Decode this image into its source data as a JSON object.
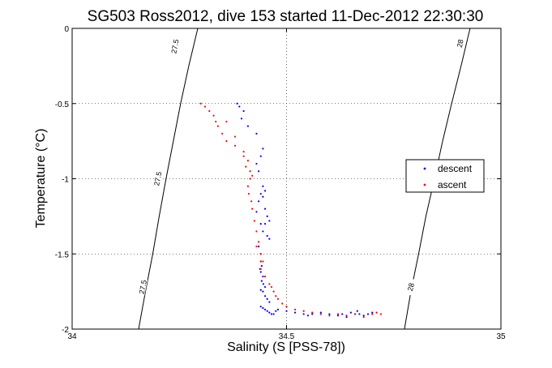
{
  "chart_data": {
    "type": "scatter",
    "title": "SG503 Ross2012, dive 153 started 11-Dec-2012 22:30:30",
    "xlabel": "Salinity (S [PSS-78])",
    "ylabel": "Temperature (°C)",
    "xlim": [
      34,
      35
    ],
    "ylim": [
      -2,
      0
    ],
    "x_ticks": [
      34,
      34.5,
      35
    ],
    "x_tick_labels": [
      "34",
      "34.5",
      "35"
    ],
    "y_ticks": [
      -2,
      -1.5,
      -1,
      -0.5,
      0
    ],
    "y_tick_labels": [
      "-2",
      "-1.5",
      "-1",
      "-0.5",
      "0"
    ],
    "grid": true,
    "legend_position": "right",
    "isopycnals": [
      {
        "label": "27.5",
        "points": [
          [
            34.155,
            -2
          ],
          [
            34.171,
            -1.75
          ],
          [
            34.188,
            -1.5
          ],
          [
            34.203,
            -1.25
          ],
          [
            34.219,
            -1.0
          ],
          [
            34.236,
            -0.75
          ],
          [
            34.253,
            -0.5
          ],
          [
            34.272,
            -0.25
          ],
          [
            34.293,
            0
          ]
        ],
        "label_positions": [
          [
            34.165,
            -1.72
          ],
          [
            34.2,
            -1.0
          ],
          [
            34.24,
            -0.12
          ]
        ]
      },
      {
        "label": "28",
        "points": [
          [
            34.775,
            -2
          ],
          [
            34.79,
            -1.75
          ],
          [
            34.808,
            -1.5
          ],
          [
            34.825,
            -1.25
          ],
          [
            34.845,
            -1.0
          ],
          [
            34.864,
            -0.75
          ],
          [
            34.885,
            -0.5
          ],
          [
            34.907,
            -0.25
          ],
          [
            34.928,
            0
          ]
        ],
        "label_positions": [
          [
            34.79,
            -1.72
          ],
          [
            34.905,
            -0.1
          ]
        ]
      }
    ],
    "series": [
      {
        "name": "descent",
        "color": "#0000ff",
        "x": [
          34.385,
          34.39,
          34.4,
          34.395,
          34.41,
          34.43,
          34.445,
          34.44,
          34.43,
          34.435,
          34.445,
          34.45,
          34.44,
          34.435,
          34.445,
          34.45,
          34.455,
          34.46,
          34.45,
          34.445,
          34.455,
          34.46,
          34.44,
          34.44,
          34.442,
          34.438,
          34.44,
          34.445,
          34.442,
          34.446,
          34.45,
          34.44,
          34.445,
          34.45,
          34.455,
          34.46,
          34.44,
          34.445,
          34.45,
          34.455,
          34.46,
          34.465,
          34.47,
          34.475,
          34.48,
          34.5,
          34.52,
          34.54,
          34.55,
          34.56,
          34.58,
          34.6,
          34.62,
          34.63,
          34.64,
          34.65,
          34.66,
          34.665,
          34.67,
          34.68,
          34.69,
          34.7,
          34.43,
          34.44,
          34.435
        ],
        "y": [
          -0.5,
          -0.52,
          -0.55,
          -0.6,
          -0.65,
          -0.7,
          -0.8,
          -0.85,
          -0.9,
          -0.95,
          -1.05,
          -1.08,
          -1.1,
          -1.15,
          -1.12,
          -1.2,
          -1.25,
          -1.28,
          -1.3,
          -1.35,
          -1.38,
          -1.4,
          -1.5,
          -1.55,
          -1.58,
          -1.6,
          -1.62,
          -1.65,
          -1.68,
          -1.7,
          -1.72,
          -1.74,
          -1.75,
          -1.78,
          -1.8,
          -1.82,
          -1.85,
          -1.86,
          -1.87,
          -1.88,
          -1.89,
          -1.9,
          -1.9,
          -1.88,
          -1.87,
          -1.88,
          -1.89,
          -1.9,
          -1.91,
          -1.9,
          -1.89,
          -1.9,
          -1.91,
          -1.9,
          -1.92,
          -1.89,
          -1.9,
          -1.88,
          -1.9,
          -1.91,
          -1.9,
          -1.89,
          -1.22,
          -1.3,
          -1.45
        ]
      },
      {
        "name": "ascent",
        "color": "#ff0000",
        "x": [
          34.3,
          34.31,
          34.32,
          34.33,
          34.335,
          34.34,
          34.35,
          34.36,
          34.38,
          34.4,
          34.41,
          34.405,
          34.415,
          34.42,
          34.415,
          34.41,
          34.412,
          34.418,
          34.42,
          34.425,
          34.43,
          34.435,
          34.44,
          34.445,
          34.44,
          34.45,
          34.46,
          34.465,
          34.47,
          34.475,
          34.48,
          34.49,
          34.5,
          34.52,
          34.54,
          34.56,
          34.58,
          34.6,
          34.62,
          34.64,
          34.66,
          34.68,
          34.7,
          34.71,
          34.72,
          34.36,
          34.38,
          34.4,
          34.43,
          34.44
        ],
        "y": [
          -0.5,
          -0.52,
          -0.55,
          -0.58,
          -0.62,
          -0.65,
          -0.7,
          -0.75,
          -0.78,
          -0.82,
          -0.88,
          -0.92,
          -0.95,
          -0.98,
          -1.0,
          -1.05,
          -1.1,
          -1.15,
          -1.2,
          -1.28,
          -1.35,
          -1.42,
          -1.5,
          -1.55,
          -1.6,
          -1.65,
          -1.7,
          -1.72,
          -1.75,
          -1.78,
          -1.8,
          -1.83,
          -1.85,
          -1.87,
          -1.88,
          -1.89,
          -1.9,
          -1.91,
          -1.9,
          -1.91,
          -1.9,
          -1.92,
          -1.9,
          -1.89,
          -1.9,
          -0.62,
          -0.72,
          -0.85,
          -1.45,
          -1.55
        ]
      }
    ]
  }
}
